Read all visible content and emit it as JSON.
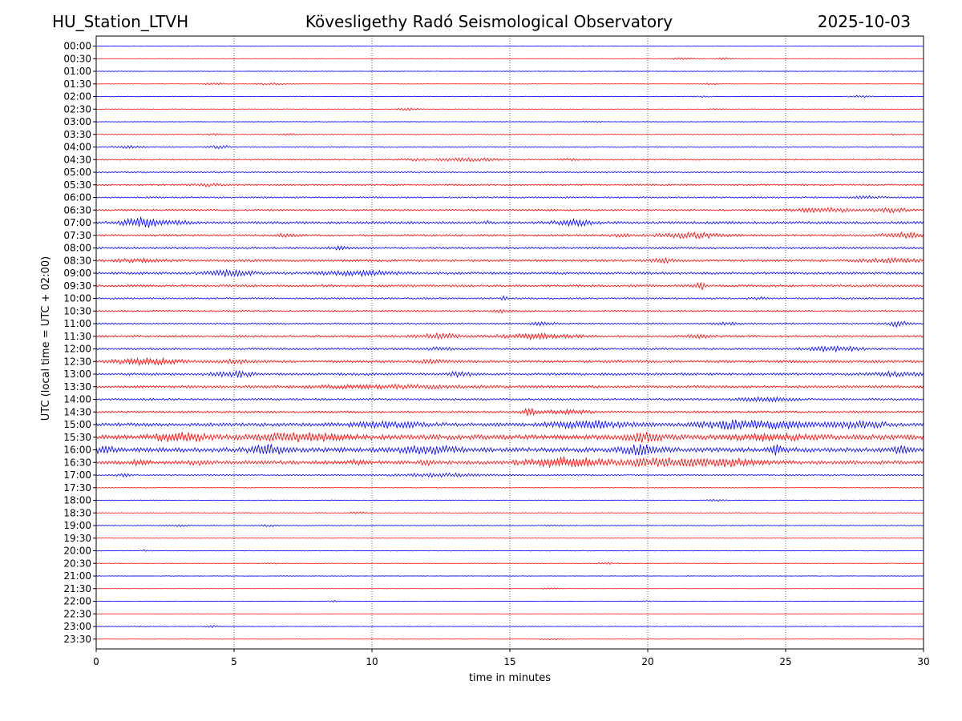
{
  "header": {
    "station": "HU_Station_LTVH",
    "observatory": "Kövesligethy Radó Seismological Observatory",
    "date": "2025-10-03"
  },
  "chart_data": {
    "type": "line",
    "title": "Kövesligethy Radó Seismological Observatory",
    "xlabel": "time in minutes",
    "ylabel": "UTC (local time = UTC + 02:00)",
    "xlim": [
      0,
      30
    ],
    "xticks": [
      0,
      5,
      10,
      15,
      20,
      25,
      30
    ],
    "grid": "vertical dotted at 5, 10, 15, 20, 25",
    "colors": {
      "even_trace": "#0000ff",
      "odd_trace": "#ff0000",
      "axes": "#000000"
    },
    "rows": [
      {
        "label": "00:00",
        "noise": 0.3,
        "events": [
          {
            "t": 9.2,
            "a": 0.6,
            "w": 0.2
          }
        ]
      },
      {
        "label": "00:30",
        "noise": 0.3,
        "events": [
          {
            "t": 21.3,
            "a": 1.0,
            "w": 0.5
          },
          {
            "t": 22.8,
            "a": 1.2,
            "w": 0.3
          }
        ]
      },
      {
        "label": "01:00",
        "noise": 0.3,
        "events": []
      },
      {
        "label": "01:30",
        "noise": 0.35,
        "events": [
          {
            "t": 4.3,
            "a": 1.2,
            "w": 0.4
          },
          {
            "t": 6.3,
            "a": 1.1,
            "w": 0.6
          },
          {
            "t": 22.3,
            "a": 0.9,
            "w": 0.3
          }
        ]
      },
      {
        "label": "02:00",
        "noise": 0.4,
        "events": [
          {
            "t": 27.7,
            "a": 1.2,
            "w": 0.4
          },
          {
            "t": 22.0,
            "a": 0.7,
            "w": 0.3
          }
        ]
      },
      {
        "label": "02:30",
        "noise": 0.4,
        "events": [
          {
            "t": 11.3,
            "a": 1.4,
            "w": 0.4
          },
          {
            "t": 22.5,
            "a": 0.6,
            "w": 0.3
          }
        ]
      },
      {
        "label": "03:00",
        "noise": 0.3,
        "events": [
          {
            "t": 18.0,
            "a": 0.5,
            "w": 0.3
          }
        ]
      },
      {
        "label": "03:30",
        "noise": 0.5,
        "events": [
          {
            "t": 4.3,
            "a": 0.8,
            "w": 0.3
          },
          {
            "t": 7.0,
            "a": 0.8,
            "w": 0.3
          },
          {
            "t": 29.0,
            "a": 0.7,
            "w": 0.2
          }
        ]
      },
      {
        "label": "04:00",
        "noise": 0.7,
        "events": [
          {
            "t": 4.5,
            "a": 1.6,
            "w": 0.4
          },
          {
            "t": 1.2,
            "a": 1.1,
            "w": 0.6
          }
        ]
      },
      {
        "label": "04:30",
        "noise": 0.8,
        "events": [
          {
            "t": 13.5,
            "a": 1.8,
            "w": 1.0
          },
          {
            "t": 11.5,
            "a": 1.0,
            "w": 0.6
          },
          {
            "t": 17.2,
            "a": 1.0,
            "w": 0.5
          }
        ]
      },
      {
        "label": "05:00",
        "noise": 1.0,
        "events": []
      },
      {
        "label": "05:30",
        "noise": 1.0,
        "events": [
          {
            "t": 4.0,
            "a": 1.4,
            "w": 0.5
          }
        ]
      },
      {
        "label": "06:00",
        "noise": 1.0,
        "events": [
          {
            "t": 28.0,
            "a": 1.3,
            "w": 0.5
          }
        ]
      },
      {
        "label": "06:30",
        "noise": 1.1,
        "events": [
          {
            "t": 26.3,
            "a": 2.6,
            "w": 1.0
          },
          {
            "t": 28.8,
            "a": 2.2,
            "w": 0.6
          }
        ]
      },
      {
        "label": "07:00",
        "noise": 1.6,
        "events": [
          {
            "t": 1.7,
            "a": 6.0,
            "w": 0.7
          },
          {
            "t": 17.3,
            "a": 3.2,
            "w": 0.7
          },
          {
            "t": 3.1,
            "a": 1.6,
            "w": 0.3
          },
          {
            "t": 14.2,
            "a": 1.5,
            "w": 0.2
          }
        ]
      },
      {
        "label": "07:30",
        "noise": 1.2,
        "events": [
          {
            "t": 7.0,
            "a": 2.0,
            "w": 0.4
          },
          {
            "t": 21.6,
            "a": 3.0,
            "w": 1.2
          },
          {
            "t": 29.2,
            "a": 2.6,
            "w": 0.8
          },
          {
            "t": 19.0,
            "a": 1.6,
            "w": 0.4
          }
        ]
      },
      {
        "label": "08:00",
        "noise": 1.3,
        "events": [
          {
            "t": 8.8,
            "a": 1.8,
            "w": 0.3
          }
        ]
      },
      {
        "label": "08:30",
        "noise": 1.5,
        "events": [
          {
            "t": 1.5,
            "a": 1.8,
            "w": 0.8
          },
          {
            "t": 20.5,
            "a": 1.8,
            "w": 0.4
          },
          {
            "t": 28.8,
            "a": 1.8,
            "w": 1.0
          }
        ]
      },
      {
        "label": "09:00",
        "noise": 1.5,
        "events": [
          {
            "t": 4.8,
            "a": 3.8,
            "w": 0.8
          },
          {
            "t": 9.5,
            "a": 2.6,
            "w": 1.5
          }
        ]
      },
      {
        "label": "09:30",
        "noise": 1.4,
        "events": [
          {
            "t": 21.9,
            "a": 5.0,
            "w": 0.2
          }
        ]
      },
      {
        "label": "10:00",
        "noise": 1.1,
        "events": [
          {
            "t": 14.8,
            "a": 2.0,
            "w": 0.1
          },
          {
            "t": 24.0,
            "a": 1.4,
            "w": 0.2
          }
        ]
      },
      {
        "label": "10:30",
        "noise": 1.0,
        "events": [
          {
            "t": 14.7,
            "a": 1.6,
            "w": 0.3
          }
        ]
      },
      {
        "label": "11:00",
        "noise": 1.1,
        "events": [
          {
            "t": 29.1,
            "a": 3.6,
            "w": 0.3
          },
          {
            "t": 16.2,
            "a": 1.6,
            "w": 0.4
          },
          {
            "t": 22.8,
            "a": 1.4,
            "w": 0.4
          }
        ]
      },
      {
        "label": "11:30",
        "noise": 1.3,
        "events": [
          {
            "t": 12.4,
            "a": 2.6,
            "w": 0.8
          },
          {
            "t": 16.0,
            "a": 2.8,
            "w": 1.3
          },
          {
            "t": 22.0,
            "a": 2.0,
            "w": 0.4
          }
        ]
      },
      {
        "label": "12:00",
        "noise": 1.3,
        "events": [
          {
            "t": 26.8,
            "a": 2.6,
            "w": 1.0
          },
          {
            "t": 12.5,
            "a": 1.5,
            "w": 0.4
          }
        ]
      },
      {
        "label": "12:30",
        "noise": 1.6,
        "events": [
          {
            "t": 1.8,
            "a": 3.2,
            "w": 1.2
          },
          {
            "t": 5.0,
            "a": 2.0,
            "w": 0.4
          },
          {
            "t": 12.3,
            "a": 1.8,
            "w": 0.5
          }
        ]
      },
      {
        "label": "13:00",
        "noise": 1.5,
        "events": [
          {
            "t": 5.0,
            "a": 2.8,
            "w": 0.8
          },
          {
            "t": 13.2,
            "a": 2.6,
            "w": 0.4
          },
          {
            "t": 29.0,
            "a": 2.0,
            "w": 1.0
          }
        ]
      },
      {
        "label": "13:30",
        "noise": 1.6,
        "events": [
          {
            "t": 10.5,
            "a": 1.6,
            "w": 3.0
          }
        ]
      },
      {
        "label": "14:00",
        "noise": 1.3,
        "events": [
          {
            "t": 24.3,
            "a": 2.4,
            "w": 1.0
          }
        ]
      },
      {
        "label": "14:30",
        "noise": 1.3,
        "events": [
          {
            "t": 15.7,
            "a": 4.2,
            "w": 0.2
          },
          {
            "t": 17.0,
            "a": 2.0,
            "w": 1.0
          }
        ]
      },
      {
        "label": "15:00",
        "noise": 2.2,
        "events": [
          {
            "t": 17.8,
            "a": 3.6,
            "w": 1.5
          },
          {
            "t": 22.8,
            "a": 3.8,
            "w": 1.0
          },
          {
            "t": 24.8,
            "a": 4.0,
            "w": 1.2
          },
          {
            "t": 27.6,
            "a": 3.0,
            "w": 1.0
          },
          {
            "t": 10.5,
            "a": 2.6,
            "w": 1.5
          }
        ]
      },
      {
        "label": "15:30",
        "noise": 3.0,
        "events": [
          {
            "t": 3.0,
            "a": 4.2,
            "w": 1.0
          },
          {
            "t": 7.5,
            "a": 4.0,
            "w": 1.5
          },
          {
            "t": 19.8,
            "a": 4.0,
            "w": 0.6
          },
          {
            "t": 24.5,
            "a": 3.2,
            "w": 1.2
          }
        ]
      },
      {
        "label": "16:00",
        "noise": 2.8,
        "events": [
          {
            "t": 6.2,
            "a": 4.8,
            "w": 0.6
          },
          {
            "t": 12.0,
            "a": 3.8,
            "w": 1.0
          },
          {
            "t": 19.8,
            "a": 4.8,
            "w": 0.7
          },
          {
            "t": 24.6,
            "a": 4.8,
            "w": 0.3
          },
          {
            "t": 29.2,
            "a": 3.4,
            "w": 0.3
          },
          {
            "t": 0.3,
            "a": 3.6,
            "w": 0.3
          }
        ]
      },
      {
        "label": "16:30",
        "noise": 2.2,
        "events": [
          {
            "t": 17.0,
            "a": 5.8,
            "w": 1.3
          },
          {
            "t": 20.5,
            "a": 4.0,
            "w": 1.5
          },
          {
            "t": 23.0,
            "a": 3.6,
            "w": 1.2
          },
          {
            "t": 1.6,
            "a": 3.0,
            "w": 0.3
          },
          {
            "t": 3.7,
            "a": 2.6,
            "w": 0.3
          },
          {
            "t": 12.0,
            "a": 3.0,
            "w": 0.2
          },
          {
            "t": 9.5,
            "a": 2.4,
            "w": 0.3
          }
        ]
      },
      {
        "label": "17:00",
        "noise": 0.9,
        "events": [
          {
            "t": 12.5,
            "a": 1.8,
            "w": 1.5
          },
          {
            "t": 1.0,
            "a": 1.4,
            "w": 0.3
          }
        ]
      },
      {
        "label": "17:30",
        "noise": 0.5,
        "events": []
      },
      {
        "label": "18:00",
        "noise": 0.5,
        "events": [
          {
            "t": 22.5,
            "a": 1.0,
            "w": 0.3
          }
        ]
      },
      {
        "label": "18:30",
        "noise": 0.5,
        "events": [
          {
            "t": 9.5,
            "a": 1.1,
            "w": 0.3
          }
        ]
      },
      {
        "label": "19:00",
        "noise": 0.4,
        "events": [
          {
            "t": 3.0,
            "a": 1.2,
            "w": 0.4
          },
          {
            "t": 6.3,
            "a": 1.1,
            "w": 0.3
          },
          {
            "t": 16.5,
            "a": 0.9,
            "w": 0.3
          }
        ]
      },
      {
        "label": "19:30",
        "noise": 0.3,
        "events": []
      },
      {
        "label": "20:00",
        "noise": 0.4,
        "events": [
          {
            "t": 1.8,
            "a": 1.0,
            "w": 0.2
          }
        ]
      },
      {
        "label": "20:30",
        "noise": 0.4,
        "events": [
          {
            "t": 18.5,
            "a": 1.1,
            "w": 0.4
          },
          {
            "t": 6.3,
            "a": 0.6,
            "w": 0.3
          }
        ]
      },
      {
        "label": "21:00",
        "noise": 0.3,
        "events": []
      },
      {
        "label": "21:30",
        "noise": 0.3,
        "events": [
          {
            "t": 16.5,
            "a": 0.8,
            "w": 0.3
          }
        ]
      },
      {
        "label": "22:00",
        "noise": 0.3,
        "events": [
          {
            "t": 8.6,
            "a": 1.1,
            "w": 0.2
          },
          {
            "t": 20.0,
            "a": 0.6,
            "w": 0.3
          }
        ]
      },
      {
        "label": "22:30",
        "noise": 0.3,
        "events": []
      },
      {
        "label": "23:00",
        "noise": 0.3,
        "events": [
          {
            "t": 4.2,
            "a": 2.0,
            "w": 0.2
          },
          {
            "t": 1.6,
            "a": 0.5,
            "w": 0.3
          }
        ]
      },
      {
        "label": "23:30",
        "noise": 0.3,
        "events": [
          {
            "t": 16.5,
            "a": 0.6,
            "w": 0.5
          }
        ]
      }
    ]
  }
}
